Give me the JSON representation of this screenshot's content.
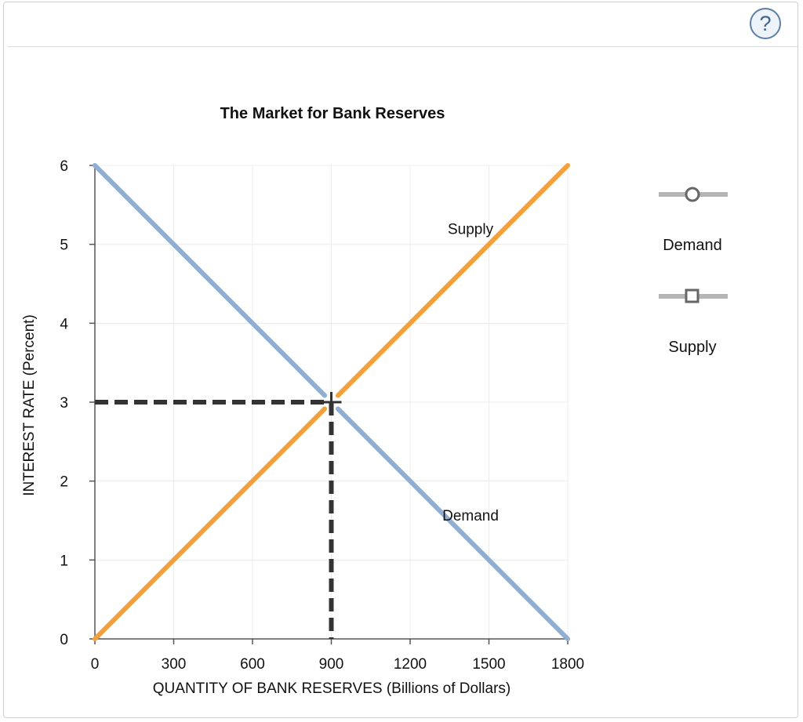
{
  "help": {
    "label": "?"
  },
  "legend": {
    "items": [
      {
        "label": "Demand",
        "marker": "circle-handle-icon"
      },
      {
        "label": "Supply",
        "marker": "square-handle-icon"
      }
    ]
  },
  "chart_data": {
    "type": "line",
    "title": "The Market for Bank Reserves",
    "xlabel": "QUANTITY OF BANK RESERVES (Billions of Dollars)",
    "ylabel": "INTEREST RATE (Percent)",
    "xlim": [
      0,
      1800
    ],
    "ylim": [
      0,
      6
    ],
    "xticks": [
      0,
      300,
      600,
      900,
      1200,
      1500,
      1800
    ],
    "yticks": [
      0,
      1,
      2,
      3,
      4,
      5,
      6
    ],
    "grid": true,
    "series": [
      {
        "name": "Demand",
        "x": [
          0,
          1800
        ],
        "y": [
          6,
          0
        ],
        "color": "#8eaed2"
      },
      {
        "name": "Supply",
        "x": [
          0,
          1800
        ],
        "y": [
          0,
          6
        ],
        "color": "#f4a03a"
      }
    ],
    "equilibrium": {
      "x": 900,
      "y": 3,
      "color": "#333333"
    },
    "annotations": [
      {
        "text": "Supply",
        "x": 1430,
        "y": 5.13
      },
      {
        "text": "Demand",
        "x": 1430,
        "y": 1.5
      }
    ]
  }
}
